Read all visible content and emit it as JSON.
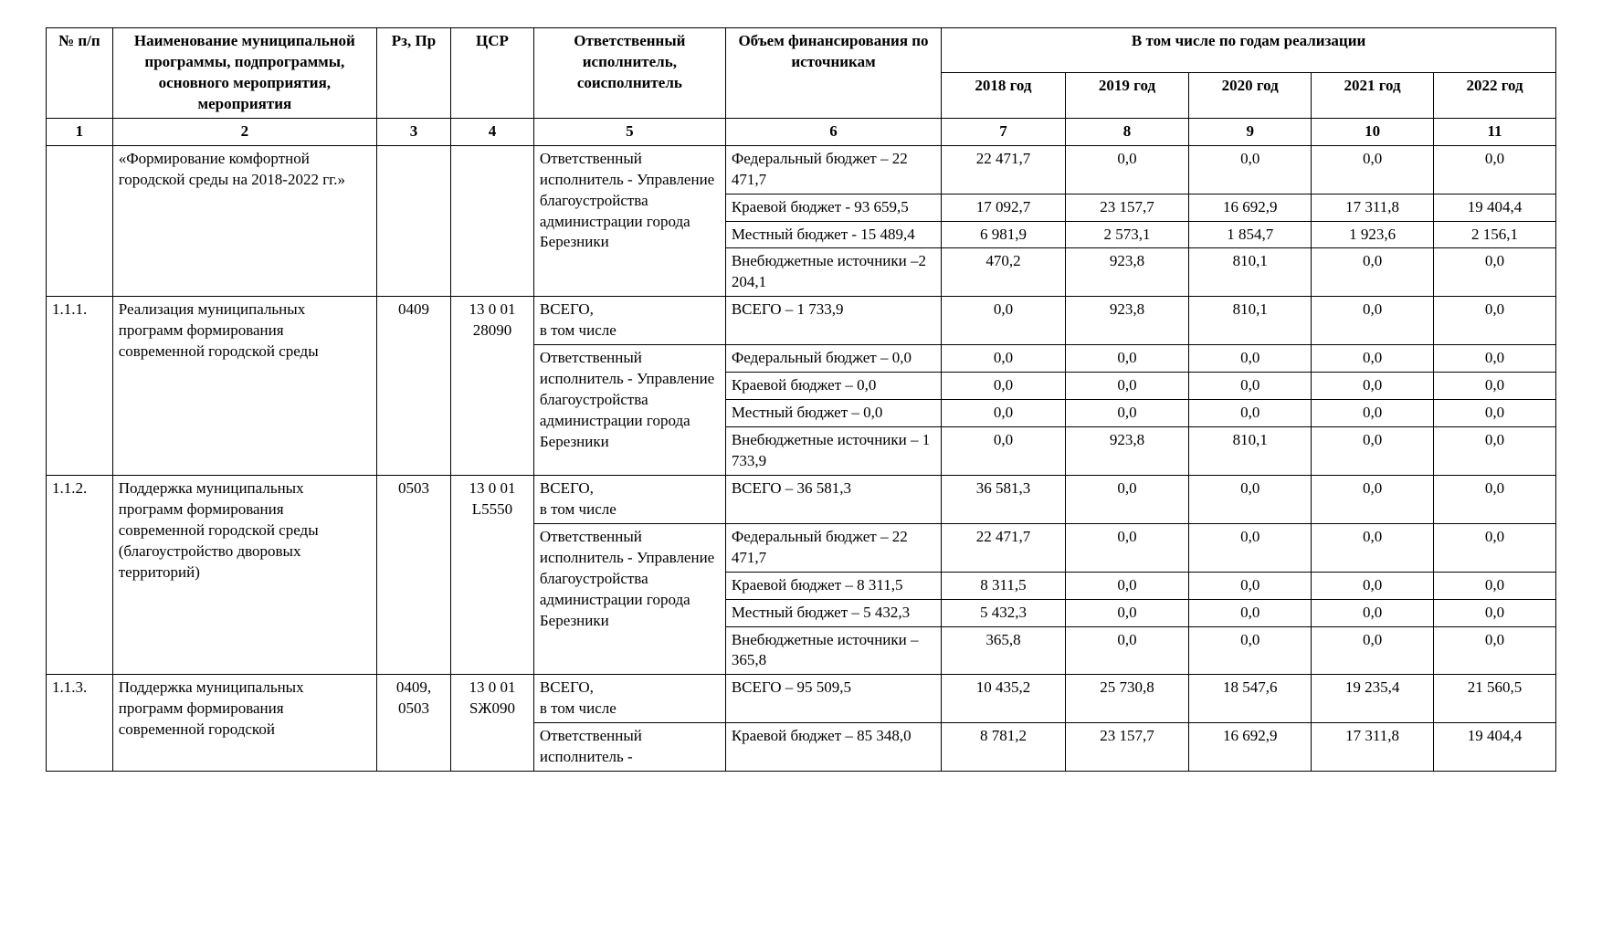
{
  "table": {
    "type": "table",
    "font_family": "Times New Roman",
    "font_size_pt": 13,
    "border_color": "#000000",
    "background_color": "#ffffff",
    "text_color": "#000000",
    "columns": [
      {
        "id": "c1",
        "label": "№ п/п",
        "width_pct": 4.4
      },
      {
        "id": "c2",
        "label": "Наименование муниципальной программы, подпрограммы, основного мероприятия, мероприятия",
        "width_pct": 17.5
      },
      {
        "id": "c3",
        "label": "Рз, Пр",
        "width_pct": 4.9
      },
      {
        "id": "c4",
        "label": "ЦСР",
        "width_pct": 5.5
      },
      {
        "id": "c5",
        "label": "Ответственный исполнитель, соисполнитель",
        "width_pct": 12.7
      },
      {
        "id": "c6",
        "label": "Объем финансирования по источникам",
        "width_pct": 14.3
      },
      {
        "id": "c7",
        "label": "2018 год",
        "width_pct": 8.2
      },
      {
        "id": "c8",
        "label": "2019 год",
        "width_pct": 8.2
      },
      {
        "id": "c9",
        "label": "2020 год",
        "width_pct": 8.1
      },
      {
        "id": "c10",
        "label": "2021 год",
        "width_pct": 8.1
      },
      {
        "id": "c11",
        "label": "2022 год",
        "width_pct": 8.1
      }
    ],
    "header_span_label": "В том числе по годам реализации",
    "column_numbers": [
      "1",
      "2",
      "3",
      "4",
      "5",
      "6",
      "7",
      "8",
      "9",
      "10",
      "11"
    ]
  },
  "groups": [
    {
      "num": "",
      "name": "«Формирование комфортной городской среды на 2018-2022 гг.»",
      "rz": "",
      "csr": "",
      "executors": [
        {
          "text": "Ответственный исполнитель - Управление благоустройства администрации города Березники",
          "span": 4
        }
      ],
      "rows": [
        {
          "src": "Федеральный бюджет – 22 471,7",
          "y2018": "22 471,7",
          "y2019": "0,0",
          "y2020": "0,0",
          "y2021": "0,0",
          "y2022": "0,0"
        },
        {
          "src": "Краевой бюджет - 93 659,5",
          "y2018": "17 092,7",
          "y2019": "23 157,7",
          "y2020": "16 692,9",
          "y2021": "17 311,8",
          "y2022": "19 404,4"
        },
        {
          "src": "Местный бюджет - 15 489,4",
          "y2018": "6 981,9",
          "y2019": "2 573,1",
          "y2020": "1 854,7",
          "y2021": "1 923,6",
          "y2022": "2 156,1"
        },
        {
          "src": "Внебюджетные источники –2 204,1",
          "y2018": "470,2",
          "y2019": "923,8",
          "y2020": "810,1",
          "y2021": "0,0",
          "y2022": "0,0"
        }
      ]
    },
    {
      "num": "1.1.1.",
      "name": "Реализация муниципальных программ формирования современной городской среды",
      "rz": "0409",
      "csr": "13 0 01 28090",
      "executors": [
        {
          "text": "ВСЕГО,\nв том числе",
          "span": 1
        },
        {
          "text": "Ответственный исполнитель - Управление благоустройства администрации города Березники",
          "span": 4
        }
      ],
      "rows": [
        {
          "src": "ВСЕГО – 1 733,9",
          "y2018": "0,0",
          "y2019": "923,8",
          "y2020": "810,1",
          "y2021": "0,0",
          "y2022": "0,0"
        },
        {
          "src": "Федеральный бюджет – 0,0",
          "y2018": "0,0",
          "y2019": "0,0",
          "y2020": "0,0",
          "y2021": "0,0",
          "y2022": "0,0"
        },
        {
          "src": "Краевой бюджет – 0,0",
          "y2018": "0,0",
          "y2019": "0,0",
          "y2020": "0,0",
          "y2021": "0,0",
          "y2022": "0,0"
        },
        {
          "src": "Местный бюджет – 0,0",
          "y2018": "0,0",
          "y2019": "0,0",
          "y2020": "0,0",
          "y2021": "0,0",
          "y2022": "0,0"
        },
        {
          "src": "Внебюджетные источники – 1 733,9",
          "y2018": "0,0",
          "y2019": "923,8",
          "y2020": "810,1",
          "y2021": "0,0",
          "y2022": "0,0"
        }
      ]
    },
    {
      "num": "1.1.2.",
      "name": "Поддержка муниципальных программ формирования современной городской среды (благоустройство дворовых территорий)",
      "rz": "0503",
      "csr": "13 0 01 L5550",
      "executors": [
        {
          "text": "ВСЕГО,\nв том числе",
          "span": 1
        },
        {
          "text": "Ответственный исполнитель - Управление благоустройства администрации города Березники",
          "span": 4
        }
      ],
      "rows": [
        {
          "src": "ВСЕГО – 36 581,3",
          "y2018": "36 581,3",
          "y2019": "0,0",
          "y2020": "0,0",
          "y2021": "0,0",
          "y2022": "0,0"
        },
        {
          "src": "Федеральный бюджет – 22 471,7",
          "y2018": "22 471,7",
          "y2019": "0,0",
          "y2020": "0,0",
          "y2021": "0,0",
          "y2022": "0,0"
        },
        {
          "src": "Краевой бюджет – 8 311,5",
          "y2018": "8 311,5",
          "y2019": "0,0",
          "y2020": "0,0",
          "y2021": "0,0",
          "y2022": "0,0"
        },
        {
          "src": "Местный бюджет – 5 432,3",
          "y2018": "5 432,3",
          "y2019": "0,0",
          "y2020": "0,0",
          "y2021": "0,0",
          "y2022": "0,0"
        },
        {
          "src": "Внебюджетные источники – 365,8",
          "y2018": "365,8",
          "y2019": "0,0",
          "y2020": "0,0",
          "y2021": "0,0",
          "y2022": "0,0"
        }
      ]
    },
    {
      "num": "1.1.3.",
      "name": "Поддержка муниципальных программ формирования современной городской",
      "rz": "0409, 0503",
      "csr": "13 0 01 SЖ090",
      "executors": [
        {
          "text": "ВСЕГО,\nв том числе",
          "span": 1
        },
        {
          "text": "Ответственный исполнитель -",
          "span": 1
        }
      ],
      "rows": [
        {
          "src": "ВСЕГО – 95 509,5",
          "y2018": "10 435,2",
          "y2019": "25 730,8",
          "y2020": "18 547,6",
          "y2021": "19 235,4",
          "y2022": "21 560,5"
        },
        {
          "src": "Краевой бюджет – 85 348,0",
          "y2018": "8 781,2",
          "y2019": "23 157,7",
          "y2020": "16 692,9",
          "y2021": "17 311,8",
          "y2022": "19 404,4"
        }
      ]
    }
  ]
}
